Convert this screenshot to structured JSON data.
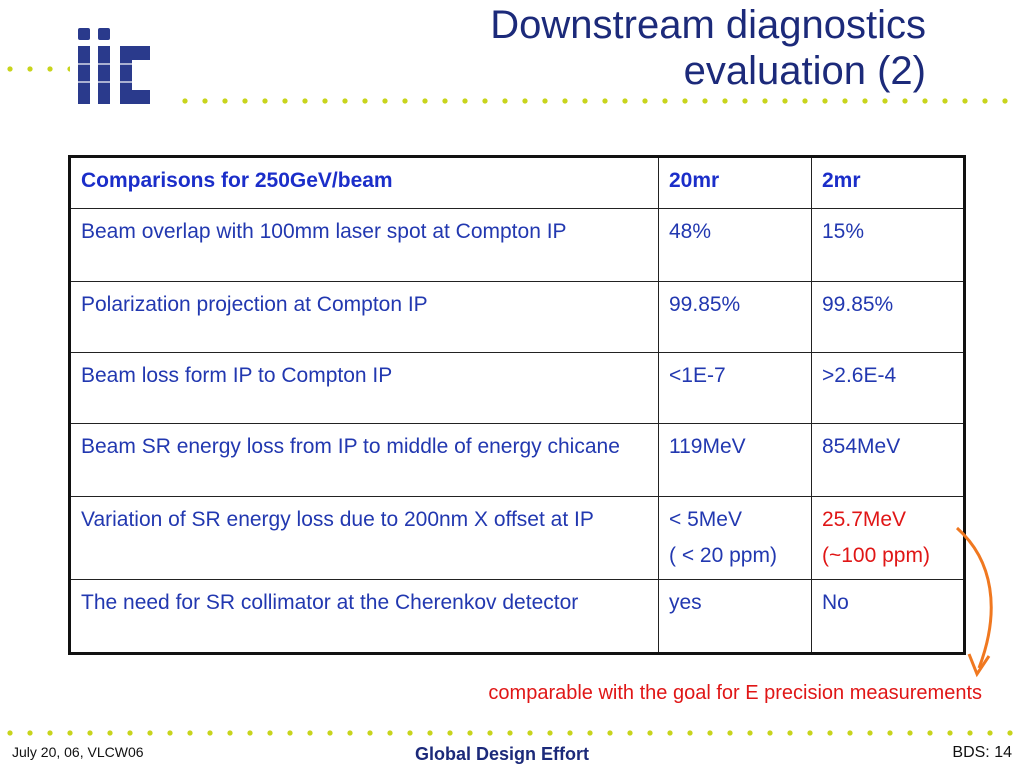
{
  "title": {
    "line1": "Downstream diagnostics",
    "line2": "evaluation (2)"
  },
  "logo": {
    "icon": "ilc-logo",
    "text": "ilc"
  },
  "table": {
    "headers": [
      "Comparisons for 250GeV/beam",
      "20mr",
      "2mr"
    ],
    "rows": [
      {
        "label": "Beam overlap with 100mm laser spot at Compton IP",
        "c20mr": "48%",
        "c2mr": "15%"
      },
      {
        "label": "Polarization projection at Compton IP",
        "c20mr": "99.85%",
        "c2mr": "99.85%"
      },
      {
        "label": "Beam loss form IP to Compton IP",
        "c20mr": "<1E-7",
        "c2mr": ">2.6E-4"
      },
      {
        "label": "Beam SR energy loss from IP to middle of energy chicane",
        "c20mr": "119MeV",
        "c2mr": "854MeV"
      },
      {
        "label": "Variation of SR energy loss due to 200nm X offset at IP",
        "c20mr": "< 5MeV",
        "c20mr_sub": "( < 20 ppm)",
        "c2mr": "25.7MeV",
        "c2mr_sub": "(~100 ppm)"
      },
      {
        "label": "The need for SR collimator at the Cherenkov detector",
        "c20mr": "yes",
        "c2mr": "No"
      }
    ]
  },
  "note": "comparable with the goal for E precision measurements",
  "footer": {
    "left": "July 20, 06, VLCW06",
    "center": "Global Design Effort",
    "right": "BDS: 14"
  },
  "colors": {
    "title": "#1c2a7a",
    "table_text": "#2238b0",
    "highlight": "#e01616",
    "dots": "#c8d41c",
    "arrow": "#f07820"
  }
}
